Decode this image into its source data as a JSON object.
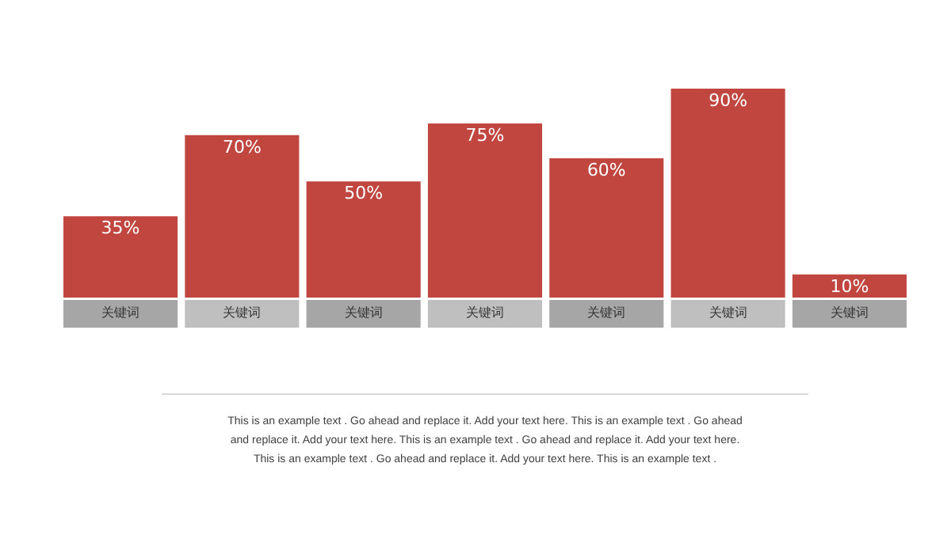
{
  "chart_data": {
    "type": "bar",
    "categories": [
      "关键词",
      "关键词",
      "关键词",
      "关键词",
      "关键词",
      "关键词",
      "关键词"
    ],
    "values": [
      35,
      70,
      50,
      75,
      60,
      90,
      10
    ],
    "value_labels": [
      "35%",
      "70%",
      "50%",
      "75%",
      "60%",
      "90%",
      "10%"
    ],
    "color": "#c0463f",
    "grid": false,
    "annotations": [
      "This is an example text . Go ahead and replace it. Add your text here. This is an example text . Go ahead and replace it. Add your text here. This is an example text . Go ahead and replace it. Add your text here. This is an example text . Go ahead and replace it. Add your text here. This is an example text ."
    ]
  }
}
